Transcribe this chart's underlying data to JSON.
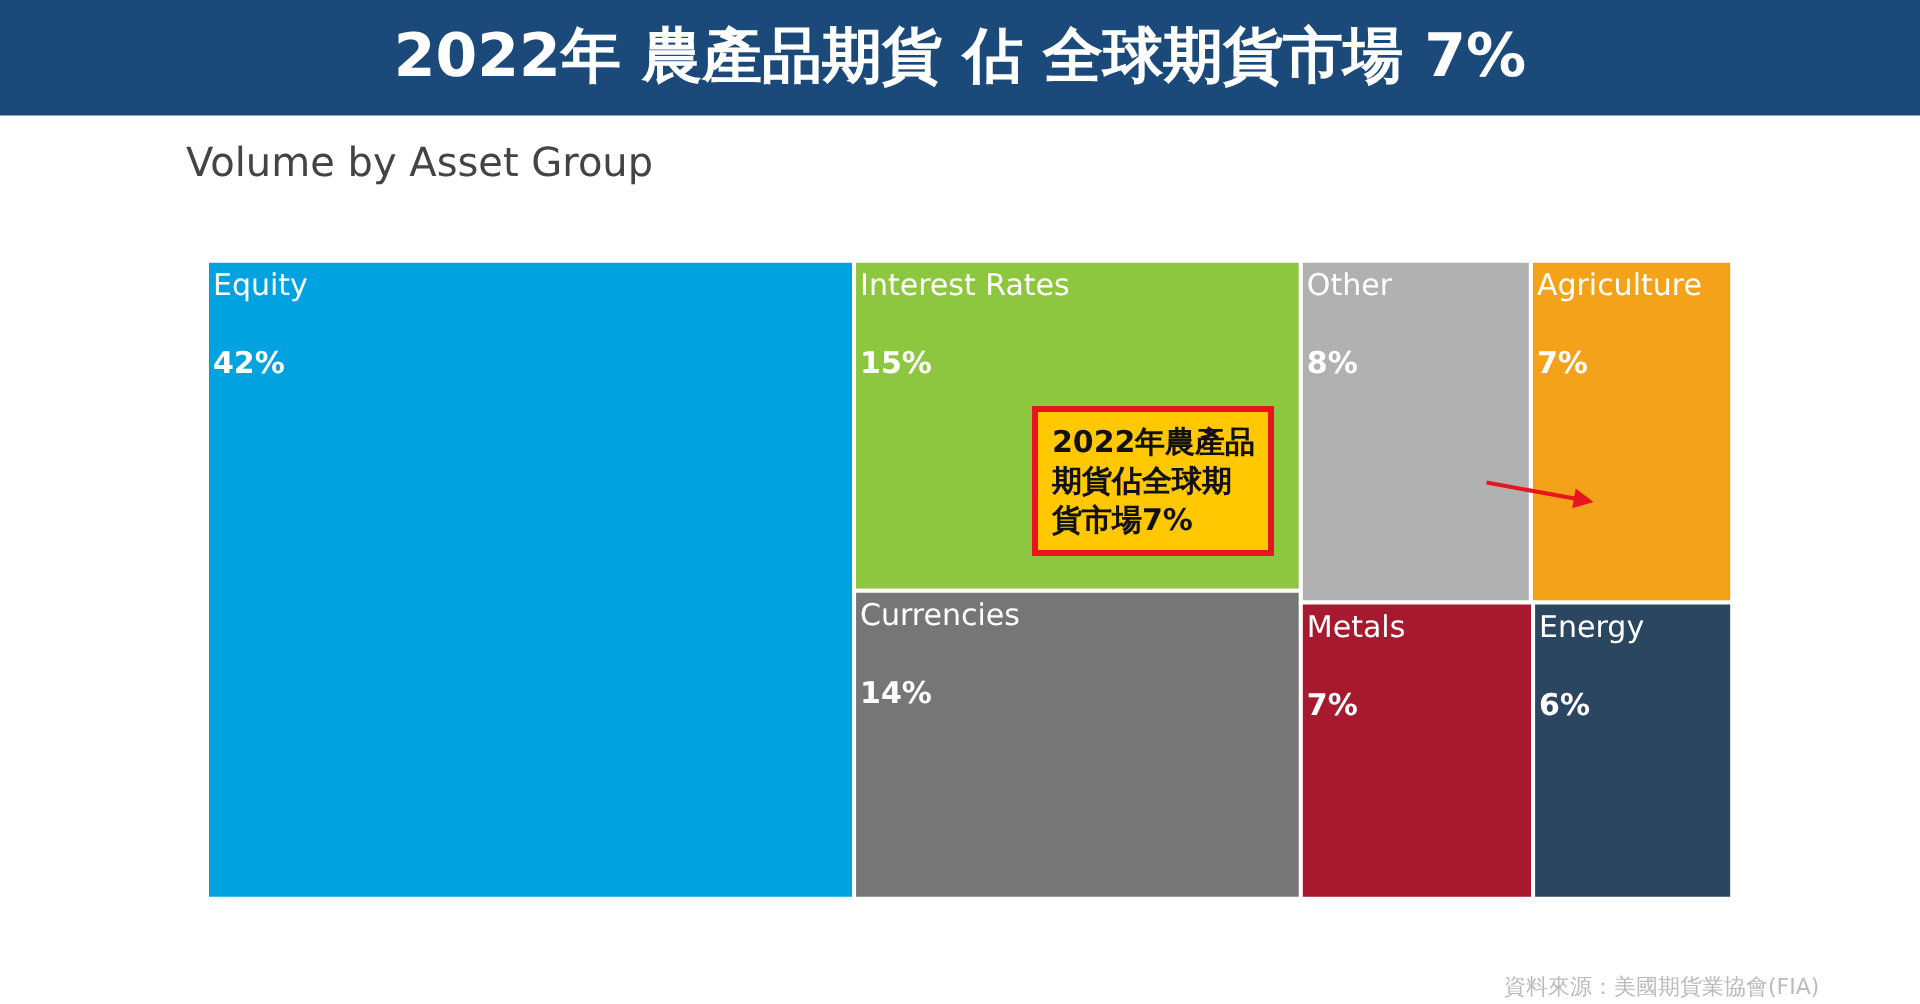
{
  "chart_data": {
    "type": "other",
    "title": "2022年 農產品期貨 佔 全球期貨市場 7%",
    "subtitle": "Volume by Asset Group",
    "categories": [
      "Equity",
      "Interest Rates",
      "Currencies",
      "Other",
      "Agriculture",
      "Metals",
      "Energy"
    ],
    "values": [
      42,
      15,
      14,
      8,
      7,
      7,
      6
    ],
    "value_labels": [
      "42%",
      "15%",
      "14%",
      "8%",
      "7%",
      "7%",
      "6%"
    ],
    "colors": [
      "#00a3e0",
      "#8dc63f",
      "#767676",
      "#b1b1b1",
      "#f5a21b",
      "#a6192e",
      "#2a4660"
    ],
    "annotations": [
      "2022年農產品期貨佔全球期貨市場7%",
      "資料來源：美國期貨業協會(FIA)"
    ]
  }
}
